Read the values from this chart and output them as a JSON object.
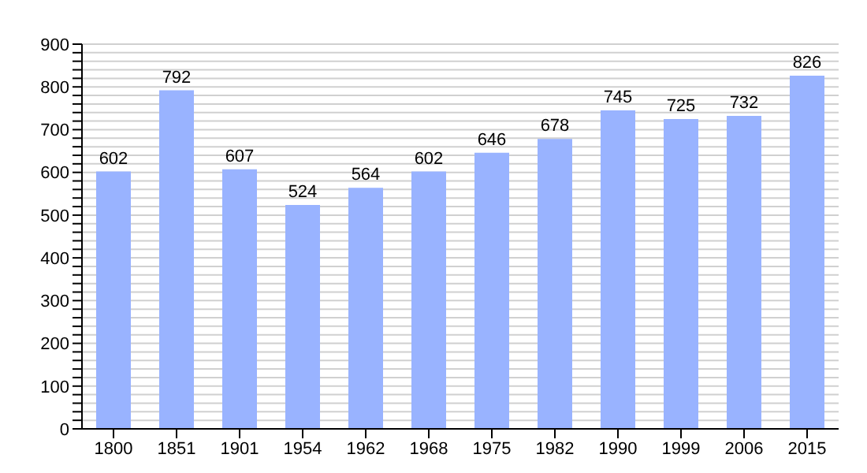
{
  "chart_data": {
    "type": "bar",
    "categories": [
      "1800",
      "1851",
      "1901",
      "1954",
      "1962",
      "1968",
      "1975",
      "1982",
      "1990",
      "1999",
      "2006",
      "2015"
    ],
    "values": [
      602,
      792,
      607,
      524,
      564,
      602,
      646,
      678,
      745,
      725,
      732,
      826
    ],
    "color": "#99b3ff",
    "ylim": [
      0,
      900
    ],
    "yticks": [
      0,
      {
        "value": 20,
        "label": null
      },
      {
        "value": 40,
        "label": null
      },
      {
        "value": 60,
        "label": null
      },
      {
        "value": 80,
        "label": null
      },
      100,
      {
        "value": 120,
        "label": null
      },
      {
        "value": 140,
        "label": null
      },
      {
        "value": 160,
        "label": null
      },
      {
        "value": 180,
        "label": null
      },
      200,
      {
        "value": 220,
        "label": null
      },
      {
        "value": 240,
        "label": null
      },
      {
        "value": 260,
        "label": null
      },
      {
        "value": 280,
        "label": null
      },
      300,
      {
        "value": 320,
        "label": null
      },
      {
        "value": 340,
        "label": null
      },
      {
        "value": 360,
        "label": null
      },
      {
        "value": 380,
        "label": null
      },
      400,
      {
        "value": 420,
        "label": null
      },
      {
        "value": 440,
        "label": null
      },
      {
        "value": 460,
        "label": null
      },
      {
        "value": 480,
        "label": null
      },
      500,
      {
        "value": 520,
        "label": null
      },
      {
        "value": 540,
        "label": null
      },
      {
        "value": 560,
        "label": null
      },
      {
        "value": 580,
        "label": null
      },
      600,
      {
        "value": 620,
        "label": null
      },
      {
        "value": 640,
        "label": null
      },
      {
        "value": 660,
        "label": null
      },
      {
        "value": 680,
        "label": null
      },
      700,
      {
        "value": 720,
        "label": null
      },
      {
        "value": 740,
        "label": null
      },
      {
        "value": 760,
        "label": null
      },
      {
        "value": 780,
        "label": null
      },
      800,
      {
        "value": 820,
        "label": null
      },
      {
        "value": 840,
        "label": null
      },
      {
        "value": 860,
        "label": null
      },
      {
        "value": 880,
        "label": null
      },
      900
    ],
    "grid": "y",
    "data_labels": true
  }
}
